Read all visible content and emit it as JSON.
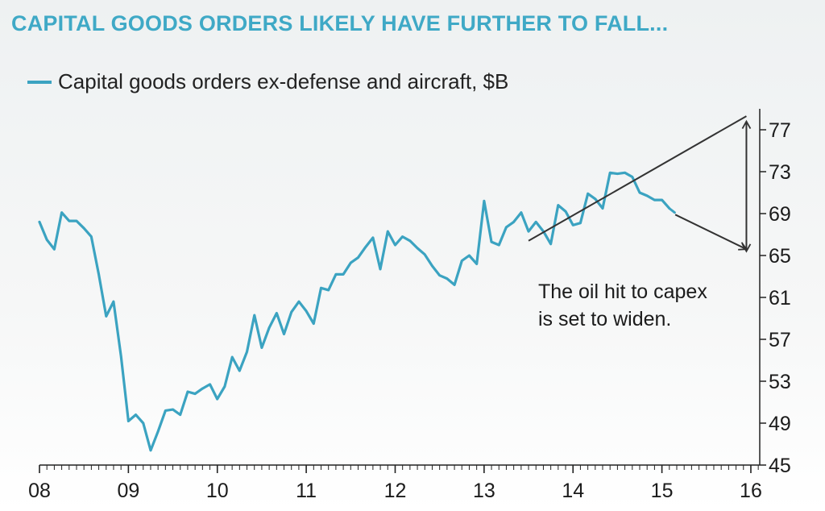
{
  "title": "CAPITAL GOODS ORDERS LIKELY HAVE FURTHER TO FALL...",
  "legend_label": "Capital goods orders ex-defense and aircraft, $B",
  "annotation_lines": [
    "The oil hit to capex",
    "is set to widen."
  ],
  "colors": {
    "series": "#3ba3c1",
    "title": "#3fa9c6",
    "axis": "#222222",
    "annotation": "#333333"
  },
  "chart_data": {
    "type": "line",
    "title": "CAPITAL GOODS ORDERS LIKELY HAVE FURTHER TO FALL...",
    "ylabel": "",
    "xlabel": "",
    "ylim": [
      45,
      79
    ],
    "xlim": [
      2008,
      2016.1
    ],
    "yticks": [
      45,
      49,
      53,
      57,
      61,
      65,
      69,
      73,
      77
    ],
    "xtick_labels": [
      "08",
      "09",
      "10",
      "11",
      "12",
      "13",
      "14",
      "15",
      "16"
    ],
    "series": [
      {
        "name": "Capital goods orders ex-defense and aircraft, $B",
        "x": [
          2008.0,
          2008.083,
          2008.167,
          2008.25,
          2008.333,
          2008.417,
          2008.5,
          2008.583,
          2008.667,
          2008.75,
          2008.833,
          2008.917,
          2009.0,
          2009.083,
          2009.167,
          2009.25,
          2009.333,
          2009.417,
          2009.5,
          2009.583,
          2009.667,
          2009.75,
          2009.833,
          2009.917,
          2010.0,
          2010.083,
          2010.167,
          2010.25,
          2010.333,
          2010.417,
          2010.5,
          2010.583,
          2010.667,
          2010.75,
          2010.833,
          2010.917,
          2011.0,
          2011.083,
          2011.167,
          2011.25,
          2011.333,
          2011.417,
          2011.5,
          2011.583,
          2011.667,
          2011.75,
          2011.833,
          2011.917,
          2012.0,
          2012.083,
          2012.167,
          2012.25,
          2012.333,
          2012.417,
          2012.5,
          2012.583,
          2012.667,
          2012.75,
          2012.833,
          2012.917,
          2013.0,
          2013.083,
          2013.167,
          2013.25,
          2013.333,
          2013.417,
          2013.5,
          2013.583,
          2013.667,
          2013.75,
          2013.833,
          2013.917,
          2014.0,
          2014.083,
          2014.167,
          2014.25,
          2014.333,
          2014.417,
          2014.5,
          2014.583,
          2014.667,
          2014.75,
          2014.833,
          2014.917,
          2015.0,
          2015.083
        ],
        "values": [
          68.2,
          66.5,
          65.6,
          69.1,
          68.3,
          68.3,
          67.6,
          66.8,
          63.2,
          59.2,
          60.6,
          55.4,
          49.2,
          49.8,
          49.0,
          46.4,
          48.2,
          50.2,
          50.3,
          49.8,
          52.0,
          51.8,
          52.3,
          52.7,
          51.3,
          52.5,
          55.3,
          54.0,
          55.8,
          59.3,
          56.2,
          58.1,
          59.5,
          57.5,
          59.6,
          60.6,
          59.7,
          58.5,
          61.9,
          61.7,
          63.2,
          63.2,
          64.3,
          64.8,
          65.8,
          66.7,
          63.7,
          67.3,
          66.0,
          66.8,
          66.4,
          65.7,
          65.1,
          64.0,
          63.1,
          62.8,
          62.2,
          64.5,
          65.0,
          64.2,
          70.2,
          66.3,
          66.0,
          67.7,
          68.2,
          69.1,
          67.3,
          68.2,
          67.3,
          66.1,
          69.8,
          69.2,
          67.9,
          68.1,
          70.9,
          70.4,
          69.5,
          72.9,
          72.8,
          72.9,
          72.5,
          71.0,
          70.7,
          70.3,
          70.3,
          69.5
        ]
      }
    ],
    "annotations": {
      "text": "The oil hit to capex is set to widen.",
      "trend_line": {
        "x": [
          2013.5,
          2015.95
        ],
        "y": [
          66.4,
          78.3
        ]
      },
      "projection_arrow": {
        "x": [
          2015.15,
          2015.95
        ],
        "y": [
          68.9,
          65.6
        ]
      },
      "gap_arrow": {
        "x": 2015.95,
        "y": [
          77.8,
          65.4
        ]
      }
    }
  }
}
